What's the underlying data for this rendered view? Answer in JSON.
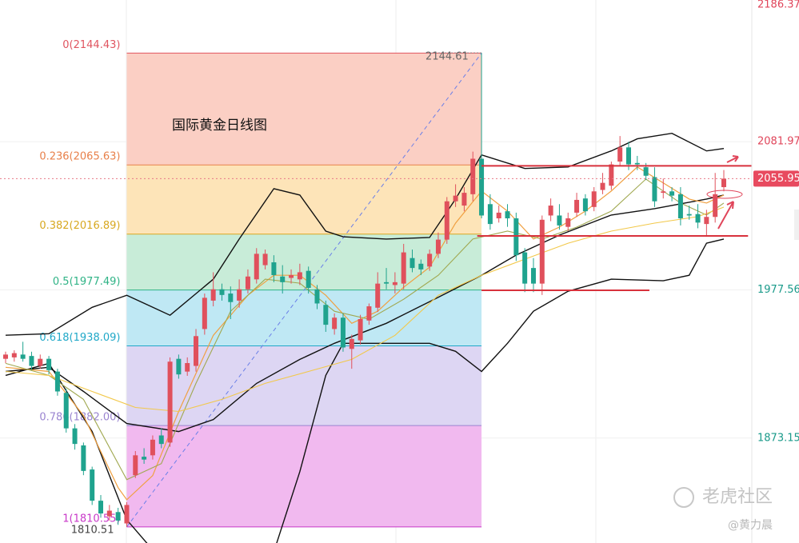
{
  "chart_data": {
    "type": "candlestick",
    "title": "国际黄金日线图",
    "ylim": [
      1799.2,
      2186.37
    ],
    "yticks": [
      2186.37,
      2081.97,
      1977.56,
      1873.15
    ],
    "ytick_colors": [
      "#e0455a",
      "#e0455a",
      "#1a9a8a",
      "#1a9a8a"
    ],
    "up_color": "#e0505c",
    "down_color": "#1fa38e",
    "open": [
      1929,
      1930,
      1932,
      1931,
      1924,
      1929,
      1920,
      1905,
      1880,
      1868,
      1851,
      1829,
      1818,
      1821,
      1813,
      1847,
      1860,
      1861,
      1875,
      1870,
      1929,
      1920,
      1924,
      1950,
      1970,
      1978,
      1975,
      1970,
      1978,
      1985,
      1995,
      1997,
      1987,
      1986,
      1985,
      1991,
      1978,
      1967,
      1950,
      1958,
      1936,
      1942,
      1956,
      1965,
      1983,
      1981,
      1982,
      2000,
      1996,
      1994,
      2003,
      2013,
      2040,
      2037,
      2045,
      2070,
      2038,
      2028,
      2033,
      2028,
      2004,
      1993,
      1982,
      2030,
      2030,
      2022,
      2032,
      2042,
      2036,
      2048,
      2051,
      2068,
      2078,
      2067,
      2064,
      2057,
      2046,
      2047,
      2045,
      2031,
      2031,
      2024,
      2029,
      2050
    ],
    "high": [
      1934,
      1935,
      1941,
      1934,
      1932,
      1931,
      1922,
      1908,
      1883,
      1870,
      1853,
      1833,
      1826,
      1824,
      1828,
      1864,
      1866,
      1875,
      1880,
      1930,
      1932,
      1930,
      1950,
      1975,
      1990,
      1982,
      1980,
      1985,
      1992,
      2007,
      2006,
      2002,
      1995,
      1992,
      1996,
      1994,
      1981,
      1970,
      1961,
      1961,
      1946,
      1960,
      1968,
      1990,
      1993,
      1990,
      2010,
      2006,
      1999,
      2006,
      2018,
      2043,
      2052,
      2050,
      2075,
      2144.61,
      2045,
      2037,
      2038,
      2032,
      2007,
      2000,
      2030,
      2042,
      2038,
      2032,
      2046,
      2045,
      2050,
      2060,
      2068,
      2086,
      2082,
      2072,
      2067,
      2064,
      2056,
      2050,
      2050,
      2037,
      2038,
      2034,
      2060,
      2062
    ],
    "low": [
      1926,
      1927,
      1927,
      1921,
      1922,
      1918,
      1903,
      1877,
      1865,
      1847,
      1826,
      1817,
      1815,
      1812,
      1810.51,
      1845,
      1855,
      1858,
      1866,
      1867,
      1915,
      1917,
      1920,
      1946,
      1966,
      1970,
      1957,
      1965,
      1975,
      1982,
      1992,
      1983,
      1975,
      1982,
      1981,
      1975,
      1964,
      1948,
      1946,
      1934,
      1922,
      1939,
      1953,
      1962,
      1978,
      1975,
      1978,
      1990,
      1988,
      1991,
      2000,
      2010,
      2036,
      2033,
      2040,
      2028,
      2020,
      2025,
      2022,
      1998,
      1976,
      1976,
      1974,
      2026,
      2020,
      2019,
      2029,
      2030,
      2033,
      2045,
      2048,
      2065,
      2062,
      2062,
      2055,
      2036,
      2042,
      2040,
      2023,
      2027,
      2021,
      2015,
      2025,
      2047
    ],
    "close": [
      1932,
      1933,
      1929,
      1924,
      1929,
      1921,
      1906,
      1880,
      1869,
      1850,
      1829,
      1820,
      1822,
      1815,
      1826,
      1861,
      1858,
      1872,
      1869,
      1927,
      1918,
      1926,
      1945,
      1972,
      1978,
      1974,
      1969,
      1978,
      1987,
      2003,
      2003,
      1988,
      1983,
      1988,
      1990,
      1979,
      1968,
      1953,
      1958,
      1937,
      1943,
      1957,
      1966,
      1982,
      1982,
      1983,
      2004,
      1993,
      1992,
      2003,
      2013,
      2040,
      2044,
      2046,
      2070,
      2030,
      2024,
      2032,
      2028,
      2002,
      1982,
      1982,
      2027,
      2037,
      2023,
      2028,
      2041,
      2033,
      2047,
      2053,
      2066,
      2078,
      2066,
      2066,
      2058,
      2040,
      2047,
      2044,
      2028,
      2030,
      2025,
      2029,
      2045,
      2055.95
    ],
    "overlays": [
      {
        "color": "#111111",
        "width": 1.4,
        "x": [
          0,
          5,
          10,
          14,
          19,
          24,
          27,
          31,
          34,
          37,
          39,
          44,
          49,
          52,
          55,
          60,
          65,
          70,
          73,
          77,
          81,
          83
        ],
        "values": [
          1945.6,
          1946.7,
          1965.3,
          1973.8,
          1959.7,
          1985.1,
          2013.4,
          2048.9,
          2044.4,
          2019.0,
          2015.0,
          2013.4,
          2014.5,
          2041.6,
          2072.7,
          2063.1,
          2064.2,
          2075.5,
          2084.0,
          2087.9,
          2075.5,
          2077.2
        ]
      },
      {
        "color": "#111111",
        "width": 1.4,
        "x": [
          0,
          5,
          9,
          14,
          20,
          24,
          29,
          34,
          38,
          44,
          49,
          55,
          59,
          64,
          70,
          75,
          81,
          83
        ],
        "values": [
          1920.1,
          1923.0,
          1906.0,
          1883.4,
          1877.75,
          1886.2,
          1911.7,
          1928.6,
          1939.9,
          1954.0,
          1969.3,
          1987.9,
          2002.1,
          2016.2,
          2030.3,
          2034.8,
          2041.6,
          2044.4
        ]
      },
      {
        "color": "#111111",
        "width": 1.4,
        "x": [
          0,
          5,
          10,
          14,
          18,
          31,
          34,
          37,
          39,
          44,
          49,
          52,
          55,
          58,
          61,
          65,
          70,
          76,
          79,
          81,
          83
        ],
        "values": [
          1917.3,
          1925.8,
          1877.75,
          1815.6,
          1787.3,
          1793.0,
          1849.5,
          1917.3,
          1939.9,
          1939.9,
          1939.9,
          1934.3,
          1920.1,
          1939.9,
          1962.5,
          1976.6,
          1985.1,
          1984.0,
          1987.9,
          2010.5,
          2013.4
        ]
      },
      {
        "color": "#f0a040",
        "width": 1.2,
        "x": [
          0,
          5,
          9,
          13,
          14,
          17,
          20,
          24,
          28,
          31,
          34,
          37,
          40,
          43,
          46,
          49,
          52,
          55,
          58,
          61,
          64,
          67,
          70,
          73,
          76,
          79,
          81,
          83
        ],
        "values": [
          1923.0,
          1920.1,
          1889.0,
          1838.2,
          1829.7,
          1846.7,
          1891.9,
          1945.55,
          1973.8,
          1987.9,
          1987.9,
          1973.8,
          1954.0,
          1962.5,
          1979.45,
          1993.6,
          2024.6,
          2047.2,
          2033.1,
          2013.4,
          2021.8,
          2033.1,
          2047.2,
          2064.2,
          2052.9,
          2041.6,
          2038.8,
          2044.4
        ]
      },
      {
        "color": "#a0a850",
        "width": 1.1,
        "x": [
          0,
          5,
          9,
          14,
          18,
          22,
          26,
          30,
          34,
          38,
          42,
          46,
          50,
          54,
          58,
          62,
          66,
          70,
          74,
          78,
          81,
          83
        ],
        "values": [
          1925.8,
          1917.3,
          1900.4,
          1843.85,
          1855.15,
          1911.7,
          1962.5,
          1985.1,
          1982.3,
          1962.5,
          1956.9,
          1971.0,
          1987.9,
          2013.4,
          2019.0,
          2013.4,
          2021.8,
          2033.1,
          2055.7,
          2038.8,
          2030.3,
          2038.8
        ]
      },
      {
        "color": "#f2c84a",
        "width": 1.1,
        "x": [
          0,
          5,
          10,
          15,
          20,
          25,
          30,
          35,
          40,
          45,
          50,
          55,
          60,
          65,
          70,
          75,
          80,
          83
        ],
        "values": [
          1920.1,
          1917.3,
          1906.0,
          1894.7,
          1891.9,
          1900.4,
          1911.7,
          1920.1,
          1928.6,
          1945.55,
          1973.8,
          1987.9,
          1999.2,
          2010.5,
          2019.0,
          2024.6,
          2029.2,
          2035.9
        ]
      }
    ],
    "fib": {
      "from": 14,
      "to": 55,
      "levels": [
        {
          "value": 2144.43,
          "label": "0(2144.43)",
          "color": "#e05560",
          "fill": "#fbcfc4"
        },
        {
          "value": 2065.63,
          "label": "0.236(2065.63)",
          "color": "#e8804a",
          "fill": "#fde4b8"
        },
        {
          "value": 2016.89,
          "label": "0.382(2016.89)",
          "color": "#d8a820",
          "fill": "#c8ecd8"
        },
        {
          "value": 1977.49,
          "label": "0.5(1977.49)",
          "color": "#2fb386",
          "fill": "#bfe8f4"
        },
        {
          "value": 1938.09,
          "label": "0.618(1938.09)",
          "color": "#20a8c8",
          "fill": "#ddd6f3"
        },
        {
          "value": 1882.0,
          "label": "0.786(1882.00)",
          "color": "#9a84d0",
          "fill": "#f1b9ef"
        },
        {
          "value": 1810.55,
          "label": "1(1810.55)",
          "color": "#c838c8"
        }
      ]
    },
    "high_label": {
      "text": "2144.61",
      "value": 2144.61,
      "index": 55
    },
    "low_label": {
      "text": "1810.51",
      "value": 1810.51,
      "index": 14
    },
    "hlines": [
      {
        "value": 2065.0,
        "from": 55,
        "to": 86.2
      },
      {
        "value": 2015.6,
        "from": 54.5,
        "to": 85.8
      },
      {
        "value": 1977.3,
        "from": 55,
        "to": 74.4
      }
    ],
    "last_price": 2055.95,
    "watermark": "老虎社区",
    "author": "@黄力晨"
  }
}
